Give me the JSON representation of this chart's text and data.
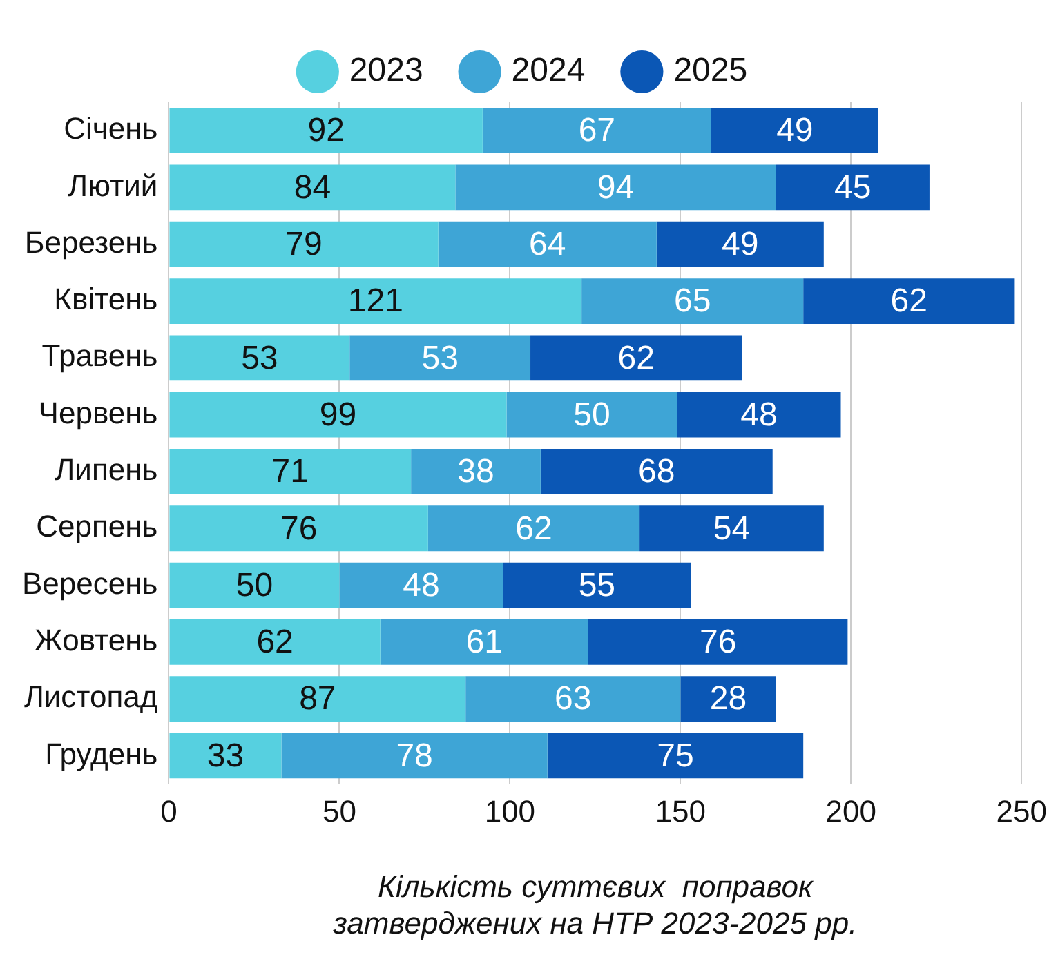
{
  "chart_data": {
    "type": "bar",
    "orientation": "horizontal",
    "stacked": true,
    "data_labels": true,
    "grid": "x",
    "legend": "top",
    "xlabel": "Кількість суттєвих  поправок\nзатверджених на НТР 2023-2025 рр.",
    "categories": [
      "Січень",
      "Лютий",
      "Березень",
      "Квітень",
      "Травень",
      "Червень",
      "Липень",
      "Серпень",
      "Вересень",
      "Жовтень",
      "Листопад",
      "Грудень"
    ],
    "xlim": [
      0,
      250
    ],
    "xticks": [
      0,
      50,
      100,
      150,
      200,
      250
    ],
    "series": [
      {
        "name": "2023",
        "color": "#56d0e0",
        "values": [
          92,
          84,
          79,
          121,
          53,
          99,
          71,
          76,
          50,
          62,
          87,
          33
        ]
      },
      {
        "name": "2024",
        "color": "#3ea5d6",
        "values": [
          67,
          94,
          64,
          65,
          53,
          50,
          38,
          62,
          48,
          61,
          63,
          78
        ]
      },
      {
        "name": "2025",
        "color": "#0b57b5",
        "values": [
          49,
          45,
          49,
          62,
          62,
          48,
          68,
          54,
          55,
          76,
          28,
          75
        ]
      }
    ]
  }
}
